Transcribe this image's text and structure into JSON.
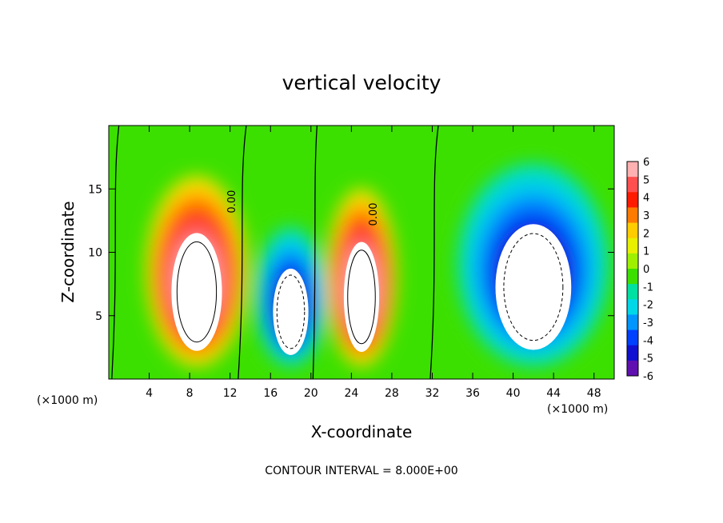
{
  "chart_data": {
    "type": "heatmap",
    "title": "vertical velocity",
    "xlabel": "X-coordinate",
    "ylabel": "Z-coordinate",
    "x_unit": "(×1000 m)",
    "x_unit_right": "(×1000 m)",
    "contour_note": "CONTOUR INTERVAL = 8.000E+00",
    "xlim": [
      0,
      50
    ],
    "ylim": [
      0,
      20
    ],
    "x_ticks": [
      4,
      8,
      12,
      16,
      20,
      24,
      28,
      32,
      36,
      40,
      44,
      48
    ],
    "y_ticks": [
      5,
      10,
      15
    ],
    "contour_labels": [
      {
        "text": "0.00",
        "x": 12.5,
        "y": 14.0
      },
      {
        "text": "0.00",
        "x": 26.5,
        "y": 13.0
      }
    ],
    "colorbar": {
      "levels": [
        6,
        5,
        4,
        3,
        2,
        1,
        0,
        -1,
        -2,
        -3,
        -4,
        -5,
        -6
      ],
      "colors": [
        "#ffb0b0",
        "#ff4f4f",
        "#ff1a00",
        "#ff7a00",
        "#ffcc00",
        "#e8f000",
        "#9ef000",
        "#3ce000",
        "#00e0a0",
        "#00d8e8",
        "#0096ff",
        "#0040ff",
        "#1010d0",
        "#6010b0"
      ]
    },
    "features": [
      {
        "sign": "positive",
        "x_center": 8.7,
        "z_top": 16.0,
        "z_bottom": 1.0,
        "half_width": 5.0,
        "peak": "> 6"
      },
      {
        "sign": "negative",
        "x_center": 18.0,
        "z_top": 12.0,
        "z_bottom": 1.0,
        "half_width": 3.5,
        "peak": "< -6"
      },
      {
        "sign": "positive",
        "x_center": 25.0,
        "z_top": 15.0,
        "z_bottom": 1.0,
        "half_width": 3.5,
        "peak": "> 6"
      },
      {
        "sign": "negative",
        "x_center": 42.0,
        "z_top": 17.0,
        "z_bottom": 1.0,
        "half_width": 7.5,
        "peak": "< -6"
      }
    ]
  }
}
